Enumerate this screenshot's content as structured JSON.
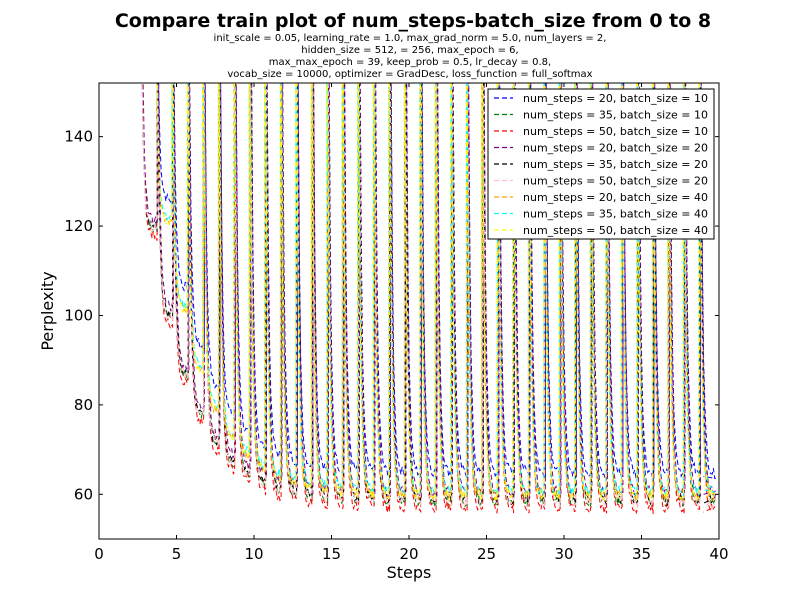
{
  "chart_data": {
    "type": "line",
    "title": "Compare train plot of num_steps-batch_size from 0 to 8",
    "subtitle": [
      "init_scale = 0.05, learning_rate = 1.0, max_grad_norm = 5.0, num_layers = 2,",
      "hidden_size = 512,   = 256, max_epoch = 6,",
      "max_max_epoch = 39, keep_prob = 0.5, lr_decay = 0.8,",
      "vocab_size = 10000, optimizer = GradDesc, loss_function = full_softmax"
    ],
    "xlabel": "Steps",
    "ylabel": "Perplexity",
    "xlim": [
      0,
      40
    ],
    "ylim": [
      50,
      152
    ],
    "xticks": [
      0,
      5,
      10,
      15,
      20,
      25,
      30,
      35,
      40
    ],
    "yticks": [
      60,
      80,
      100,
      120,
      140
    ],
    "grid": false,
    "legend_position": "top-right",
    "line_style": "dashed",
    "series": [
      {
        "name": "num_steps = 20, batch_size = 10",
        "color": "#0000ff",
        "start": 3,
        "x_offset": 0.85,
        "floor": 64.5,
        "final": 64
      },
      {
        "name": "num_steps = 35, batch_size = 10",
        "color": "#008000",
        "start": 2,
        "x_offset": 0.8,
        "floor": 58.0,
        "final": 58
      },
      {
        "name": "num_steps = 50, batch_size = 10",
        "color": "#ff0000",
        "start": 2,
        "x_offset": 0.8,
        "floor": 56.5,
        "final": 56
      },
      {
        "name": "num_steps = 20, batch_size = 20",
        "color": "#800080",
        "start": 2,
        "x_offset": 0.85,
        "floor": 60.0,
        "final": 60
      },
      {
        "name": "num_steps = 35, batch_size = 20",
        "color": "#000000",
        "start": 2,
        "x_offset": 0.8,
        "floor": 58.5,
        "final": 58
      },
      {
        "name": "num_steps = 50, batch_size = 20",
        "color": "#ffc0cb",
        "start": 2,
        "x_offset": 0.8,
        "floor": 58.0,
        "final": 57
      },
      {
        "name": "num_steps = 20, batch_size = 40",
        "color": "#ffa500",
        "start": 3,
        "x_offset": 0.75,
        "floor": 59.5,
        "final": 59
      },
      {
        "name": "num_steps = 35, batch_size = 40",
        "color": "#00ffff",
        "start": 3,
        "x_offset": 0.75,
        "floor": 60.5,
        "final": 61
      },
      {
        "name": "num_steps = 50, batch_size = 40",
        "color": "#ffff00",
        "start": 3,
        "x_offset": 0.75,
        "floor": 59.5,
        "final": 62
      }
    ]
  }
}
